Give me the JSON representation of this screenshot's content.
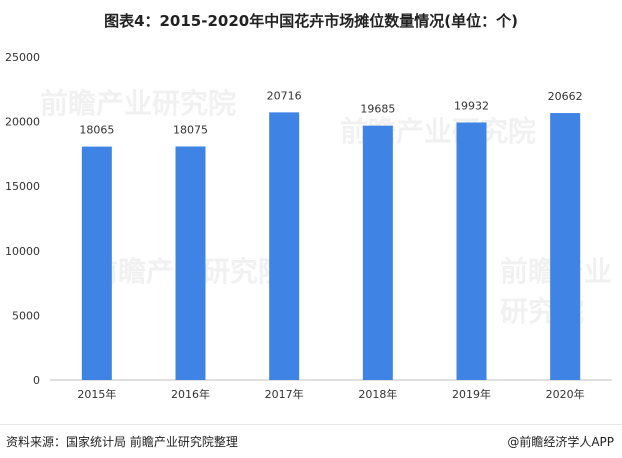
{
  "title": "图表4：2015-2020年中国花卉市场摊位数量情况(单位：个)",
  "footer": {
    "source": "资料来源：国家统计局 前瞻产业研究院整理",
    "brand": "@前瞻经济学人APP",
    "brand_icon": "copyright-mark-icon"
  },
  "watermark": "前瞻产业研究院",
  "colors": {
    "bar": "#3f84e5",
    "axis": "#bfbfbf",
    "text": "#333333"
  },
  "chart_data": {
    "type": "bar",
    "title": "图表4：2015-2020年中国花卉市场摊位数量情况(单位：个)",
    "categories": [
      "2015年",
      "2016年",
      "2017年",
      "2018年",
      "2019年",
      "2020年"
    ],
    "values": [
      18065,
      18075,
      20716,
      19685,
      19932,
      20662
    ],
    "ylim": [
      0,
      25000
    ],
    "yticks": [
      "0",
      "5000",
      "10000",
      "15000",
      "20000",
      "25000"
    ],
    "xlabel": "",
    "ylabel": "",
    "grid": false,
    "data_labels": true
  }
}
